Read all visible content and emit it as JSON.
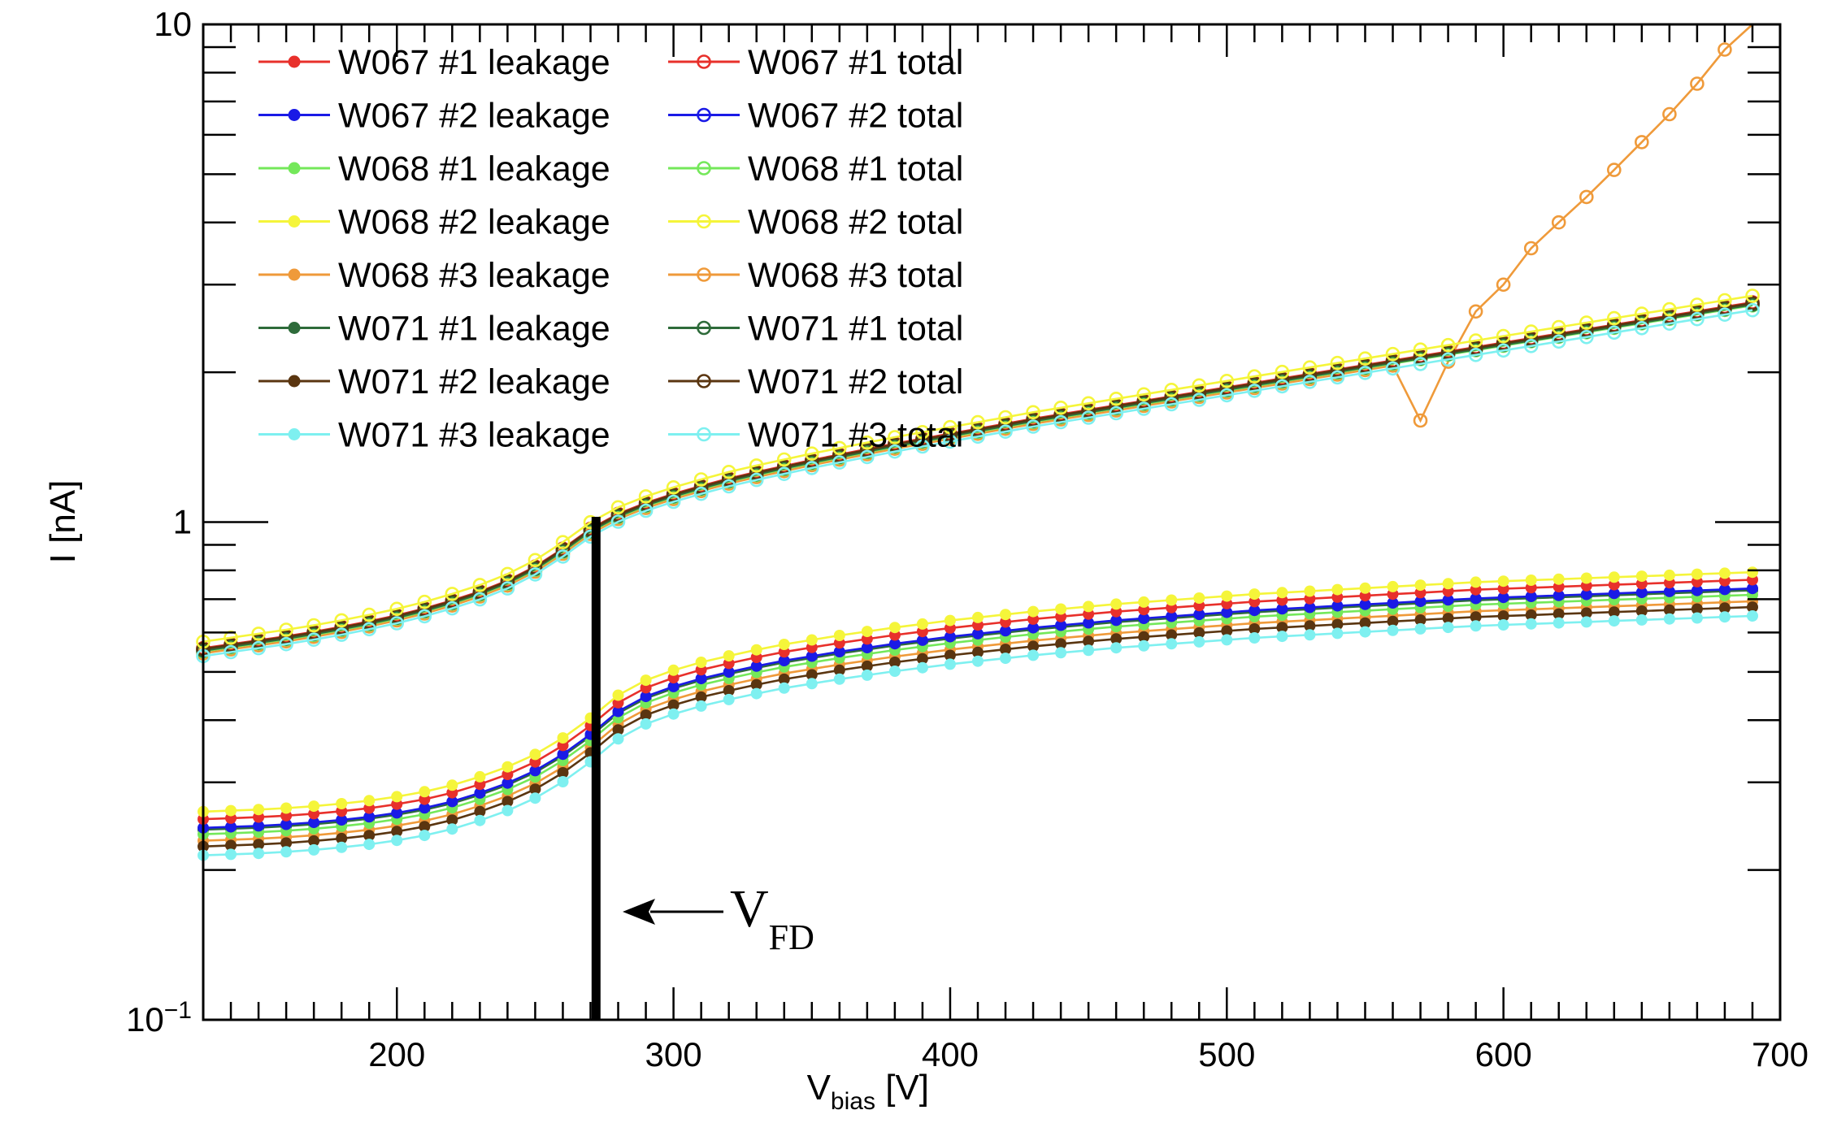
{
  "chart_data": {
    "type": "line",
    "title": "",
    "xlabel": {
      "main": "V",
      "sub": "bias",
      "unit": " [V]"
    },
    "ylabel": "I [nA]",
    "xlim": [
      130,
      700
    ],
    "ylim": [
      0.1,
      10
    ],
    "yscale": "log",
    "grid": false,
    "legend_placement": "top-left",
    "x_ticks": [
      "200",
      "300",
      "400",
      "500",
      "600",
      "700"
    ],
    "y_ticks": [
      {
        "base": "1",
        "exp": ""
      },
      {
        "base": "10",
        "exp": "−1"
      },
      {
        "base": "10",
        "exp": ""
      }
    ],
    "annotation": {
      "label_main": "V",
      "label_sub": "FD",
      "x": 272
    },
    "x": [
      130,
      140,
      150,
      160,
      170,
      180,
      190,
      200,
      210,
      220,
      230,
      240,
      250,
      260,
      270,
      280,
      290,
      300,
      310,
      320,
      330,
      340,
      350,
      360,
      370,
      380,
      390,
      400,
      410,
      420,
      430,
      440,
      450,
      460,
      470,
      480,
      490,
      500,
      510,
      520,
      530,
      540,
      550,
      560,
      570,
      580,
      590,
      600,
      610,
      620,
      630,
      640,
      650,
      660,
      670,
      680,
      690
    ],
    "leakage_shape": [
      0,
      0.002,
      0.004,
      0.007,
      0.011,
      0.016,
      0.022,
      0.03,
      0.04,
      0.053,
      0.07,
      0.09,
      0.115,
      0.148,
      0.188,
      0.234,
      0.264,
      0.284,
      0.3,
      0.313,
      0.325,
      0.336,
      0.345,
      0.354,
      0.362,
      0.37,
      0.377,
      0.384,
      0.39,
      0.396,
      0.402,
      0.407,
      0.412,
      0.417,
      0.421,
      0.425,
      0.429,
      0.433,
      0.437,
      0.44,
      0.443,
      0.446,
      0.449,
      0.452,
      0.455,
      0.458,
      0.461,
      0.463,
      0.465,
      0.467,
      0.469,
      0.471,
      0.473,
      0.475,
      0.477,
      0.479,
      0.481
    ],
    "total_shape": [
      0,
      0.008,
      0.016,
      0.024,
      0.033,
      0.043,
      0.054,
      0.066,
      0.08,
      0.096,
      0.114,
      0.136,
      0.164,
      0.2,
      0.24,
      0.27,
      0.292,
      0.31,
      0.326,
      0.341,
      0.354,
      0.366,
      0.378,
      0.389,
      0.4,
      0.411,
      0.421,
      0.431,
      0.441,
      0.451,
      0.461,
      0.47,
      0.479,
      0.488,
      0.497,
      0.506,
      0.515,
      0.524,
      0.533,
      0.542,
      0.551,
      0.56,
      0.569,
      0.578,
      0.587,
      0.596,
      0.605,
      0.614,
      0.623,
      0.632,
      0.641,
      0.65,
      0.659,
      0.668,
      0.677,
      0.686,
      0.695
    ],
    "breakdown": {
      "series": "W068 #3 total",
      "x": [
        570,
        580,
        590,
        600,
        610,
        620,
        630,
        640,
        650,
        660,
        670,
        680,
        690
      ],
      "values": [
        1.6,
        2.1,
        2.65,
        3.0,
        3.55,
        4.0,
        4.5,
        5.1,
        5.8,
        6.6,
        7.6,
        8.9,
        10.2
      ]
    },
    "series": [
      {
        "name": "W067 #1 leakage",
        "kind": "leakage",
        "color": "#e8302b",
        "start": 0.253
      },
      {
        "name": "W067 #2 leakage",
        "kind": "leakage",
        "color": "#1a1ae6",
        "start": 0.243
      },
      {
        "name": "W068 #1 leakage",
        "kind": "leakage",
        "color": "#74e85a",
        "start": 0.236
      },
      {
        "name": "W068 #2 leakage",
        "kind": "leakage",
        "color": "#f5f53a",
        "start": 0.262
      },
      {
        "name": "W068 #3 leakage",
        "kind": "leakage",
        "color": "#ef9a3a",
        "start": 0.229
      },
      {
        "name": "W071 #1 leakage",
        "kind": "leakage",
        "color": "#2e6b3a",
        "start": 0.241
      },
      {
        "name": "W071 #2 leakage",
        "kind": "leakage",
        "color": "#5a3510",
        "start": 0.223
      },
      {
        "name": "W071 #3 leakage",
        "kind": "leakage",
        "color": "#7ef0f0",
        "start": 0.214
      },
      {
        "name": "W067 #1 total",
        "kind": "total",
        "color": "#e8302b",
        "start": 0.558
      },
      {
        "name": "W067 #2 total",
        "kind": "total",
        "color": "#1a1ae6",
        "start": 0.552
      },
      {
        "name": "W068 #1 total",
        "kind": "total",
        "color": "#74e85a",
        "start": 0.55
      },
      {
        "name": "W068 #2 total",
        "kind": "total",
        "color": "#f5f53a",
        "start": 0.575
      },
      {
        "name": "W068 #3 total",
        "kind": "total",
        "color": "#ef9a3a",
        "start": 0.545
      },
      {
        "name": "W071 #1 total",
        "kind": "total",
        "color": "#2e6b3a",
        "start": 0.552
      },
      {
        "name": "W071 #2 total",
        "kind": "total",
        "color": "#5a3510",
        "start": 0.556
      },
      {
        "name": "W071 #3 total",
        "kind": "total",
        "color": "#7ef0f0",
        "start": 0.538
      }
    ]
  }
}
